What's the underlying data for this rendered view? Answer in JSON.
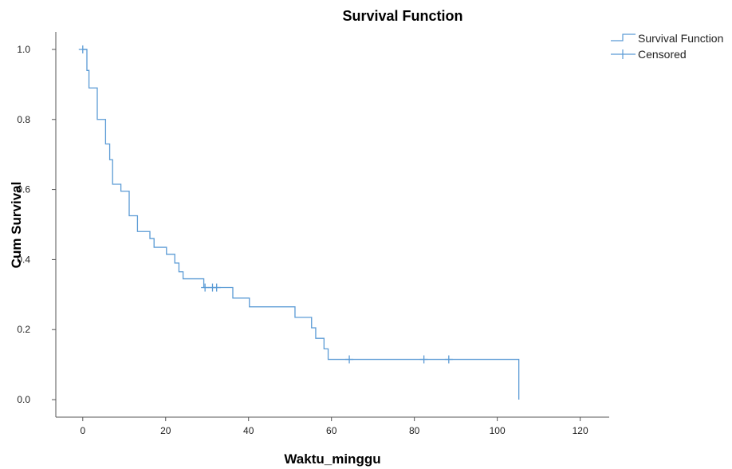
{
  "chart_data": {
    "type": "line",
    "title": "Survival Function",
    "xlabel": "Waktu_minggu",
    "ylabel": "Cum Survival",
    "xlim": [
      -6.5,
      127
    ],
    "ylim": [
      -0.05,
      1.05
    ],
    "x_ticks": [
      0,
      20,
      40,
      60,
      80,
      100,
      120
    ],
    "y_ticks": [
      0.0,
      0.2,
      0.4,
      0.6,
      0.8,
      1.0
    ],
    "x_tick_labels": [
      "0",
      "20",
      "40",
      "60",
      "80",
      "100",
      "120"
    ],
    "y_tick_labels": [
      "0.0",
      "0.2",
      "0.4",
      "0.6",
      "0.8",
      "1.0"
    ],
    "grid": false,
    "legend_position": "top-right",
    "colors": {
      "series": "#5b9bd5",
      "axis": "#555555"
    },
    "series": [
      {
        "name": "Survival Function",
        "style": "step",
        "steps": [
          {
            "x": 0,
            "y": 1.0
          },
          {
            "x": 1,
            "y": 0.94
          },
          {
            "x": 1.5,
            "y": 0.89
          },
          {
            "x": 3.5,
            "y": 0.8
          },
          {
            "x": 5.5,
            "y": 0.73
          },
          {
            "x": 6.5,
            "y": 0.685
          },
          {
            "x": 7.2,
            "y": 0.615
          },
          {
            "x": 9.2,
            "y": 0.595
          },
          {
            "x": 11.2,
            "y": 0.525
          },
          {
            "x": 13.2,
            "y": 0.48
          },
          {
            "x": 16.2,
            "y": 0.46
          },
          {
            "x": 17.2,
            "y": 0.435
          },
          {
            "x": 20.2,
            "y": 0.415
          },
          {
            "x": 22.2,
            "y": 0.39
          },
          {
            "x": 23.2,
            "y": 0.365
          },
          {
            "x": 24.2,
            "y": 0.345
          },
          {
            "x": 29.2,
            "y": 0.32
          },
          {
            "x": 36.2,
            "y": 0.29
          },
          {
            "x": 40.2,
            "y": 0.265
          },
          {
            "x": 51.2,
            "y": 0.235
          },
          {
            "x": 55.2,
            "y": 0.205
          },
          {
            "x": 56.2,
            "y": 0.175
          },
          {
            "x": 58.2,
            "y": 0.145
          },
          {
            "x": 59.2,
            "y": 0.115
          },
          {
            "x": 105.2,
            "y": 0.0
          }
        ]
      },
      {
        "name": "Censored",
        "style": "marker",
        "points": [
          {
            "x": 0,
            "y": 1.0
          },
          {
            "x": 29.5,
            "y": 0.32
          },
          {
            "x": 31.3,
            "y": 0.32
          },
          {
            "x": 32.3,
            "y": 0.32
          },
          {
            "x": 64.3,
            "y": 0.115
          },
          {
            "x": 82.3,
            "y": 0.115
          },
          {
            "x": 88.3,
            "y": 0.115
          }
        ]
      }
    ]
  }
}
